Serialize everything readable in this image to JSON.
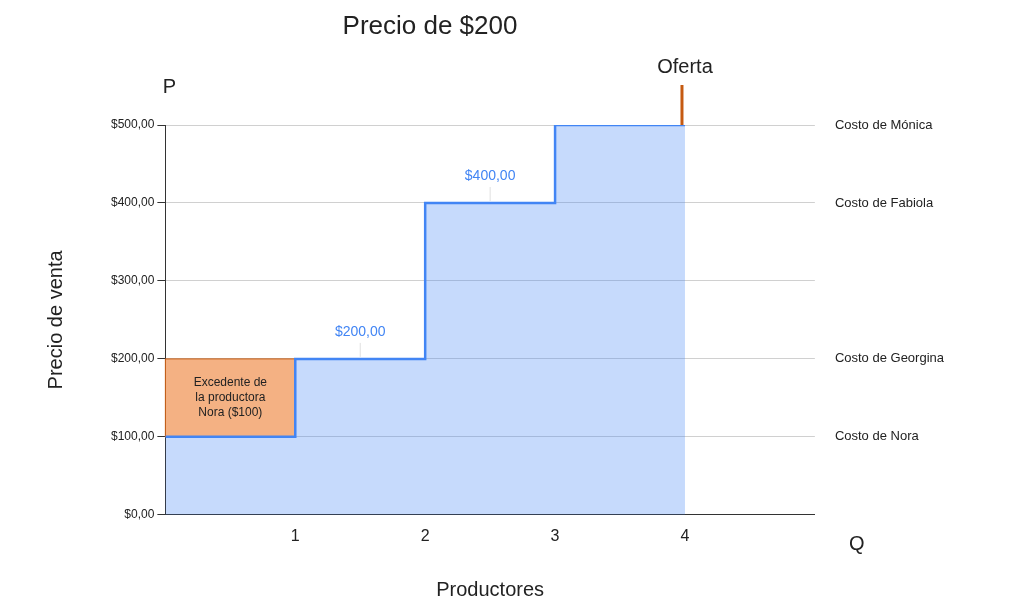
{
  "chart_data": {
    "type": "area",
    "title": "Precio de $200",
    "xlabel": "Productores",
    "ylabel": "Precio de venta",
    "xlim": [
      0,
      5
    ],
    "xticks": [
      1,
      2,
      3,
      4
    ],
    "ylim": [
      0,
      500
    ],
    "yticks": [
      {
        "value": 0,
        "label": "$0,00"
      },
      {
        "value": 100,
        "label": "$100,00"
      },
      {
        "value": 200,
        "label": "$200,00"
      },
      {
        "value": 300,
        "label": "$300,00"
      },
      {
        "value": 400,
        "label": "$400,00"
      },
      {
        "value": 500,
        "label": "$500,00"
      }
    ],
    "grid": "y",
    "legend": false,
    "series": [
      {
        "color": "#4285f4",
        "x": [
          0,
          1,
          1,
          2,
          2,
          3,
          3,
          4
        ],
        "values": [
          100,
          100,
          200,
          200,
          400,
          400,
          500,
          500
        ]
      },
      {
        "type": "bar",
        "color": "#f4b183",
        "x": [
          0.5
        ],
        "base": [
          100
        ],
        "values": [
          100
        ]
      }
    ],
    "y2_categories": [
      "Costo de Mónica",
      "Costo de Fabiola",
      null,
      "Costo de Georgina",
      "Costo de Nora",
      null
    ],
    "annotations": [
      "P",
      "Q",
      {
        "text": "$200,00",
        "x": 1.5,
        "y": 200
      },
      {
        "text": "$400,00",
        "x": 2.5,
        "y": 400
      },
      "Excedente de la productora Nora ($100)",
      {
        "text": "Oferta",
        "x": 4,
        "y": 500
      }
    ]
  }
}
